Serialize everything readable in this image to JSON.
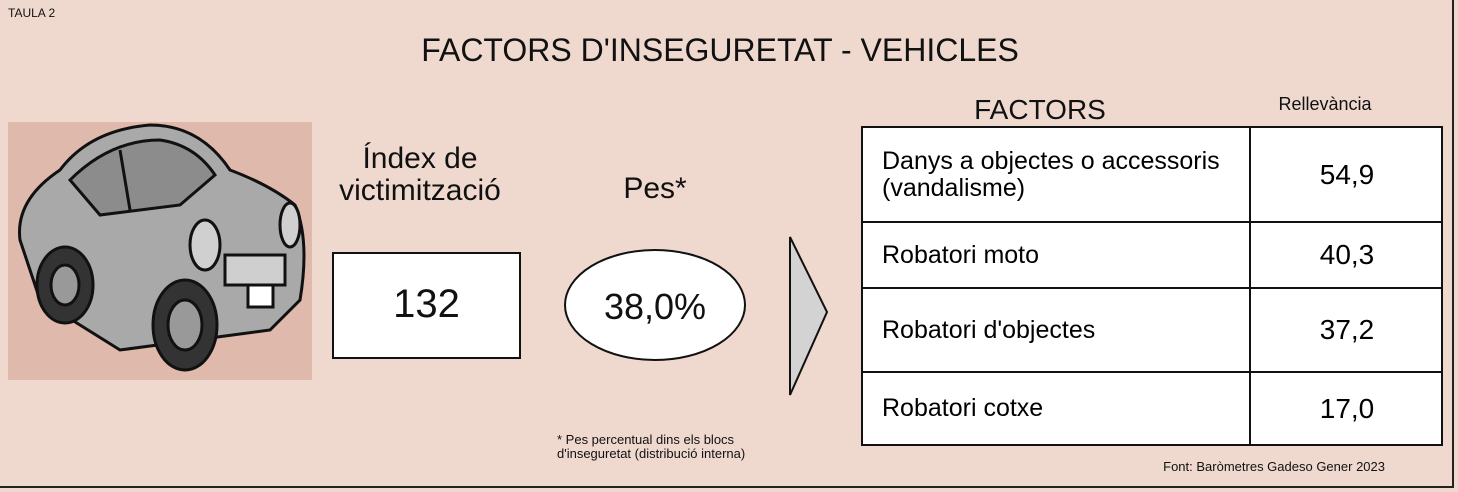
{
  "label": "TAULA 2",
  "title": "FACTORS D'INSEGURETAT - VEHICLES",
  "index": {
    "label": "Índex de victimització",
    "value": "132"
  },
  "weight": {
    "label": "Pes*",
    "value": "38,0%"
  },
  "footnote": "* Pes percentual dins els blocs d'inseguretat (distribució interna)",
  "table": {
    "headers": [
      "FACTORS",
      "Rellevància"
    ],
    "rows": [
      [
        "Danys a objectes o accessoris (vandalisme)",
        "54,9"
      ],
      [
        "Robatori moto",
        "40,3"
      ],
      [
        "Robatori d'objectes",
        "37,2"
      ],
      [
        "Robatori cotxe",
        "17,0"
      ]
    ]
  },
  "source": "Font: Baròmetres Gadeso Gener 2023"
}
